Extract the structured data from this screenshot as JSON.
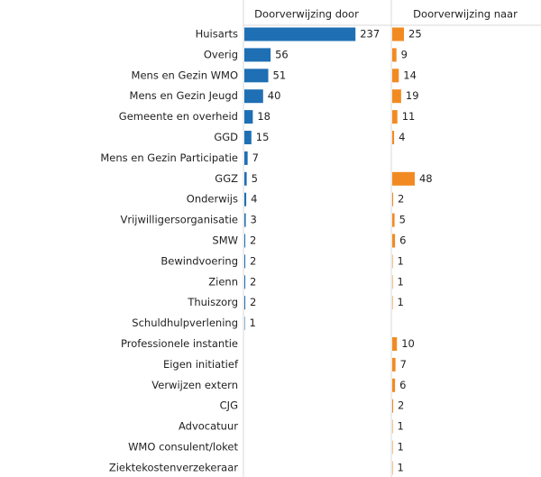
{
  "chart_data": {
    "type": "bar",
    "categories": [
      "Huisarts",
      "Overig",
      "Mens en Gezin WMO",
      "Mens en Gezin Jeugd",
      "Gemeente en overheid",
      "GGD",
      "Mens en Gezin Participatie",
      "GGZ",
      "Onderwijs",
      "Vrijwilligersorganisatie",
      "SMW",
      "Bewindvoering",
      "Zienn",
      "Thuiszorg",
      "Schuldhulpverlening",
      "Professionele instantie",
      "Eigen initiatief",
      "Verwijzen extern",
      "CJG",
      "Advocatuur",
      "WMO consulent/loket",
      "Ziektekostenverzekeraar"
    ],
    "series": [
      {
        "name": "Doorverwijzing door",
        "color": "#1f6fb4",
        "values": [
          237,
          56,
          51,
          40,
          18,
          15,
          7,
          5,
          4,
          3,
          2,
          2,
          2,
          2,
          1,
          null,
          null,
          null,
          null,
          null,
          null,
          null
        ]
      },
      {
        "name": "Doorverwijzing naar",
        "color": "#f28a22",
        "values": [
          25,
          9,
          14,
          19,
          11,
          4,
          null,
          48,
          2,
          5,
          6,
          1,
          1,
          1,
          null,
          10,
          7,
          6,
          2,
          1,
          1,
          1
        ]
      }
    ]
  }
}
